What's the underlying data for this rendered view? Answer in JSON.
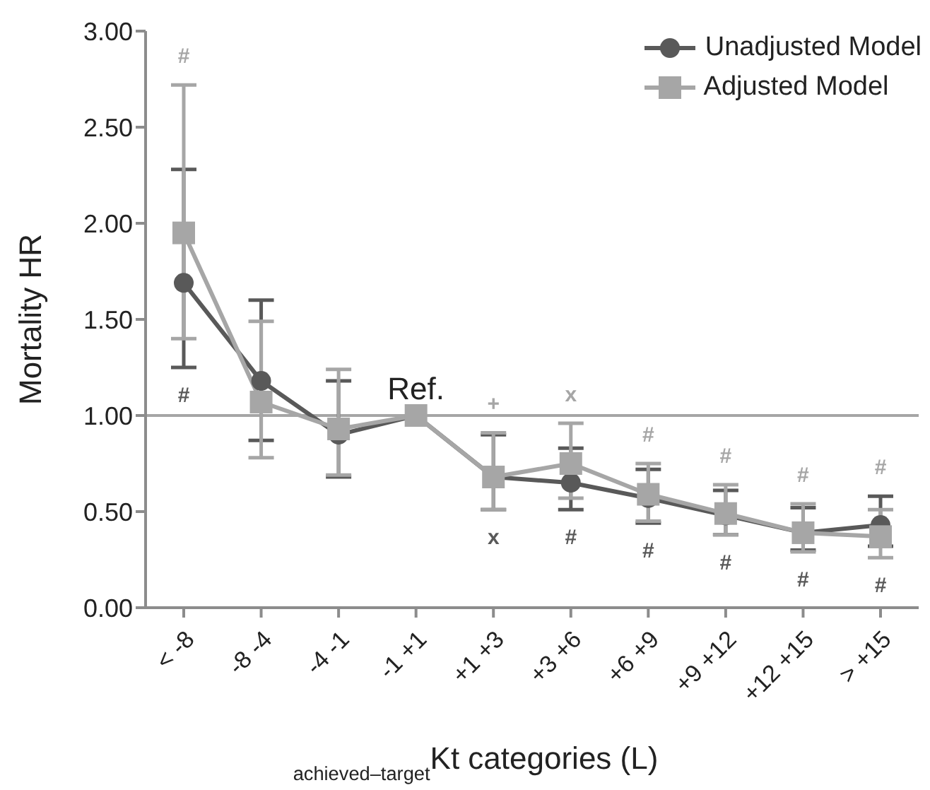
{
  "chart_data": {
    "type": "line",
    "xlabel": "$_{achieved–target}$Kt categories (L)",
    "ylabel": "Mortality HR",
    "categories": [
      "< -8",
      "-8 -4",
      "-4 -1",
      "-1 +1",
      "+1 +3",
      "+3 +6",
      "+6 +9",
      "+9 +12",
      "+12 +15",
      "> +15"
    ],
    "series": [
      {
        "name": "Unadjusted Model",
        "color": "#595959",
        "marker": "circle",
        "values": [
          1.69,
          1.18,
          0.9,
          1.0,
          0.68,
          0.65,
          0.57,
          0.48,
          0.39,
          0.43
        ],
        "errors": [
          [
            1.25,
            2.28
          ],
          [
            0.87,
            1.6
          ],
          [
            0.68,
            1.18
          ],
          null,
          [
            0.51,
            0.9
          ],
          [
            0.51,
            0.83
          ],
          [
            0.44,
            0.72
          ],
          [
            0.38,
            0.61
          ],
          [
            0.3,
            0.52
          ],
          [
            0.32,
            0.58
          ]
        ]
      },
      {
        "name": "Adjusted Model",
        "color": "#a6a6a6",
        "marker": "square",
        "values": [
          1.95,
          1.07,
          0.93,
          1.0,
          0.68,
          0.75,
          0.59,
          0.49,
          0.39,
          0.37
        ],
        "errors": [
          [
            1.4,
            2.72
          ],
          [
            0.78,
            1.49
          ],
          [
            0.69,
            1.24
          ],
          null,
          [
            0.51,
            0.91
          ],
          [
            0.57,
            0.96
          ],
          [
            0.45,
            0.75
          ],
          [
            0.38,
            0.64
          ],
          [
            0.29,
            0.54
          ],
          [
            0.26,
            0.51
          ]
        ]
      }
    ],
    "ylim": [
      0,
      3
    ],
    "yticks": [
      {
        "value": 0,
        "label": "0.00"
      },
      {
        "value": 0.5,
        "label": "0.50"
      },
      {
        "value": 1,
        "label": "1.00"
      },
      {
        "value": 1.5,
        "label": "1.50"
      },
      {
        "value": 2,
        "label": "2.00"
      },
      {
        "value": 2.5,
        "label": "2.50"
      },
      {
        "value": 3,
        "label": "3.00"
      }
    ],
    "ref_lines": [
      {
        "axis": "y",
        "value": 1,
        "color": "#a6a6a6"
      }
    ],
    "annotations": [
      {
        "text": "#",
        "x": "< -8",
        "y": 2.72
      },
      {
        "text": "#",
        "x": "< -8",
        "y": 1.25
      },
      {
        "text": "Ref.",
        "x": "-1 +1",
        "y": 1.0
      },
      {
        "text": "+",
        "x": "+1 +3",
        "y": 0.91
      },
      {
        "text": "x",
        "x": "+1 +3",
        "y": 0.51
      },
      {
        "text": "x",
        "x": "+3 +6",
        "y": 0.96
      },
      {
        "text": "#",
        "x": "+3 +6",
        "y": 0.51
      },
      {
        "text": "#",
        "x": "+6 +9",
        "y": 0.75
      },
      {
        "text": "#",
        "x": "+6 +9",
        "y": 0.44
      },
      {
        "text": "#",
        "x": "+9 +12",
        "y": 0.64
      },
      {
        "text": "#",
        "x": "+9 +12",
        "y": 0.38
      },
      {
        "text": "#",
        "x": "+12 +15",
        "y": 0.54
      },
      {
        "text": "#",
        "x": "+12 +15",
        "y": 0.3
      },
      {
        "text": "#",
        "x": "> +15",
        "y": 0.51
      },
      {
        "text": "#",
        "x": "> +15",
        "y": 0.32
      }
    ],
    "grid": false,
    "legend": "top right"
  }
}
